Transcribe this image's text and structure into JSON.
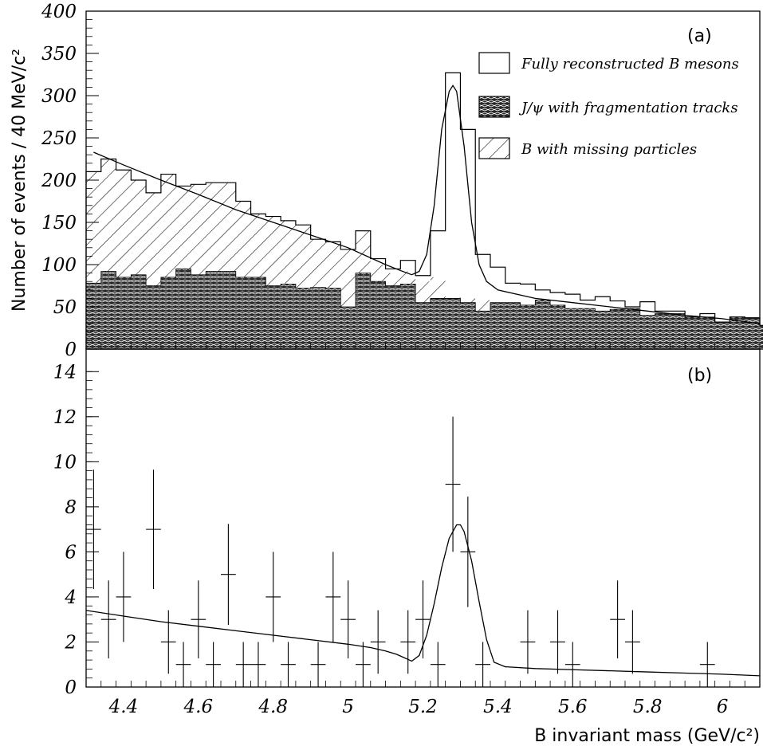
{
  "chart_data": [
    {
      "panel": "(a)",
      "type": "histogram",
      "ylabel": "Number of events / 40 MeV/c²",
      "xlim": [
        4.3,
        6.1
      ],
      "ylim": [
        0,
        400
      ],
      "yticks": [
        "0",
        "50",
        "100",
        "150",
        "200",
        "250",
        "300",
        "350",
        "400"
      ],
      "bin_width": 0.04,
      "bin_edges_start": 4.3,
      "legend_position": "top-right",
      "series": [
        {
          "name": "Fully reconstructed B mesons",
          "pattern": "open",
          "values": [
            210,
            225,
            212,
            200,
            185,
            207,
            193,
            195,
            197,
            197,
            175,
            160,
            157,
            152,
            147,
            130,
            127,
            118,
            140,
            107,
            95,
            105,
            87,
            140,
            327,
            260,
            112,
            97,
            78,
            77,
            70,
            67,
            65,
            58,
            62,
            57,
            50,
            56,
            45,
            45,
            38,
            42,
            32,
            38,
            37,
            28,
            38
          ]
        },
        {
          "name": "J/ψ with fragmentation tracks",
          "pattern": "cross-hatch",
          "values": [
            78,
            92,
            85,
            88,
            75,
            85,
            95,
            88,
            92,
            92,
            85,
            85,
            75,
            77,
            72,
            73,
            72,
            50,
            90,
            80,
            75,
            77,
            55,
            60,
            60,
            55,
            45,
            55,
            55,
            52,
            58,
            52,
            48,
            48,
            45,
            47,
            48,
            40,
            42,
            42,
            38,
            38,
            32,
            38,
            37,
            28,
            32
          ]
        },
        {
          "name": "B with missing particles",
          "pattern": "diagonal",
          "values": [
            210,
            225,
            212,
            200,
            185,
            207,
            193,
            195,
            197,
            197,
            175,
            160,
            157,
            152,
            147,
            130,
            127,
            118,
            140,
            100,
            90,
            92,
            80,
            85,
            62,
            60,
            58,
            55,
            55,
            52,
            58,
            52,
            48,
            48,
            45,
            47,
            48,
            40,
            42,
            42,
            38,
            38,
            32,
            38,
            37,
            28,
            32
          ]
        }
      ],
      "fit": {
        "x": [
          4.32,
          4.4,
          4.5,
          4.6,
          4.7,
          4.8,
          4.9,
          5.0,
          5.06,
          5.1,
          5.14,
          5.17,
          5.19,
          5.21,
          5.23,
          5.25,
          5.27,
          5.28,
          5.29,
          5.31,
          5.33,
          5.35,
          5.37,
          5.4,
          5.5,
          5.6,
          5.7,
          5.8,
          5.9,
          6.0,
          6.1
        ],
        "y": [
          233,
          218,
          200,
          183,
          165,
          150,
          135,
          120,
          108,
          100,
          93,
          88,
          92,
          112,
          170,
          260,
          305,
          312,
          305,
          240,
          150,
          100,
          80,
          70,
          60,
          55,
          50,
          45,
          40,
          36,
          30
        ]
      }
    },
    {
      "panel": "(b)",
      "type": "scatter",
      "xlabel": "B invariant mass (GeV/c²)",
      "xlim": [
        4.3,
        6.1
      ],
      "ylim": [
        0,
        15
      ],
      "xticks": [
        "4.4",
        "4.6",
        "4.8",
        "5",
        "5.2",
        "5.4",
        "5.6",
        "5.8",
        "6"
      ],
      "yticks": [
        "0",
        "2",
        "4",
        "6",
        "8",
        "10",
        "12",
        "14"
      ],
      "points": {
        "x": [
          4.32,
          4.36,
          4.4,
          4.48,
          4.52,
          4.56,
          4.6,
          4.64,
          4.68,
          4.72,
          4.76,
          4.8,
          4.84,
          4.92,
          4.96,
          5.0,
          5.04,
          5.08,
          5.16,
          5.2,
          5.24,
          5.28,
          5.32,
          5.36,
          5.48,
          5.56,
          5.6,
          5.72,
          5.76,
          5.96
        ],
        "y": [
          7,
          3,
          4,
          7,
          2,
          1,
          3,
          1,
          5,
          1,
          1,
          4,
          1,
          1,
          4,
          3,
          1,
          2,
          2,
          3,
          1,
          9,
          6,
          1,
          2,
          2,
          1,
          3,
          2,
          1
        ],
        "err": [
          2.65,
          1.73,
          2,
          2.65,
          1.41,
          1,
          1.73,
          1,
          2.24,
          1,
          1,
          2,
          1,
          1,
          2,
          1.73,
          1,
          1.41,
          1.41,
          1.73,
          1,
          3,
          2.45,
          1,
          1.41,
          1.41,
          1,
          1.73,
          1.41,
          1
        ]
      },
      "fit": {
        "x": [
          4.3,
          4.4,
          4.5,
          4.6,
          4.7,
          4.8,
          4.9,
          5.0,
          5.06,
          5.1,
          5.13,
          5.15,
          5.17,
          5.19,
          5.21,
          5.23,
          5.25,
          5.27,
          5.29,
          5.3,
          5.31,
          5.33,
          5.35,
          5.37,
          5.39,
          5.42,
          5.5,
          5.6,
          5.7,
          5.8,
          5.9,
          6.0,
          6.1
        ],
        "y": [
          3.4,
          3.15,
          2.9,
          2.7,
          2.5,
          2.3,
          2.1,
          1.9,
          1.75,
          1.6,
          1.45,
          1.3,
          1.15,
          1.4,
          2.3,
          3.7,
          5.3,
          6.6,
          7.2,
          7.2,
          6.9,
          5.6,
          3.8,
          2.1,
          1.1,
          0.9,
          0.82,
          0.77,
          0.72,
          0.67,
          0.62,
          0.57,
          0.5
        ]
      }
    }
  ]
}
